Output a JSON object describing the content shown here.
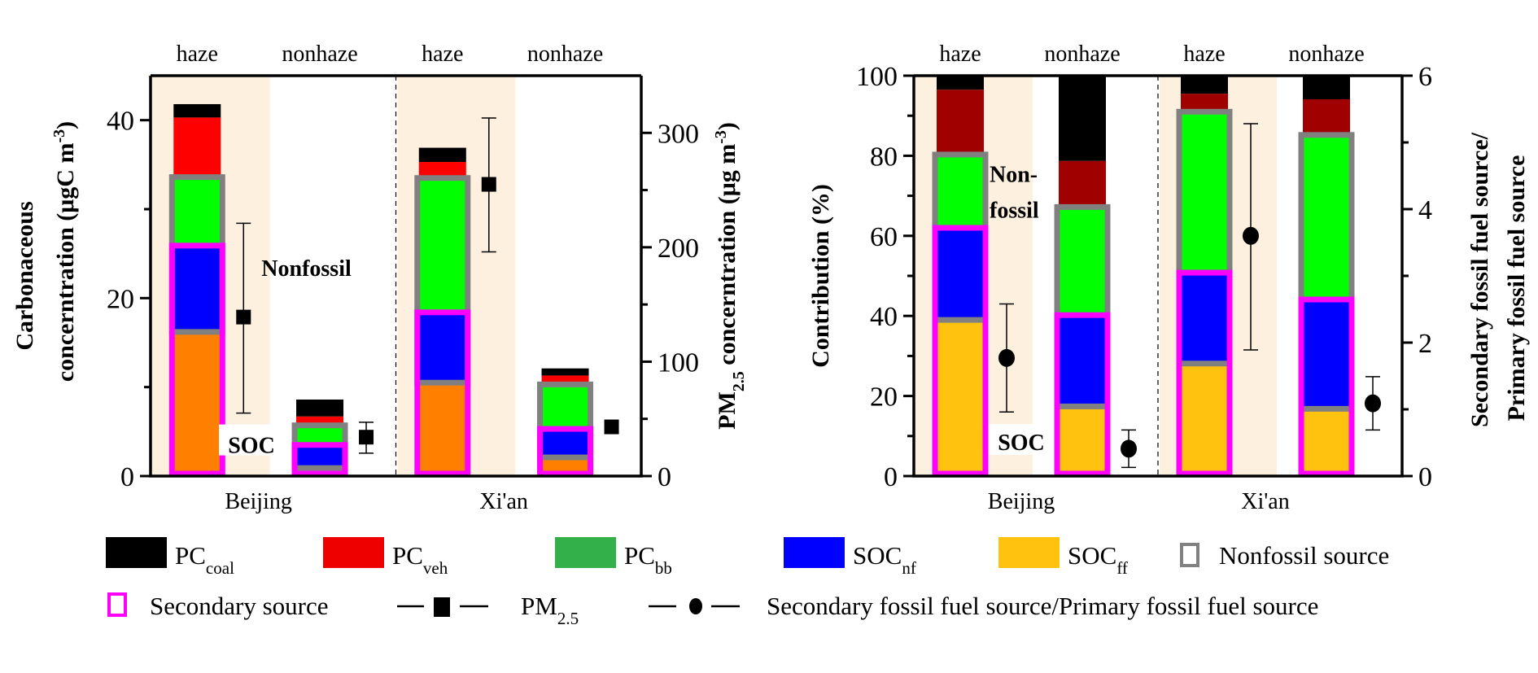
{
  "chart_data": [
    {
      "type": "bar",
      "stacked": true,
      "panel": "left",
      "ylabel_line1": "Carbonaceous",
      "ylabel_line2": "concerntration (μgC m",
      "ylabel_sup": "-3",
      "ylabel_end": ")",
      "y2label_pre": "PM",
      "y2label_sub": "2.5",
      "y2label_post": " concerntration (μg m",
      "y2label_sup": "-3",
      "y2label_end": ")",
      "ylim": [
        0,
        45
      ],
      "yticks": [
        0,
        20,
        40
      ],
      "yminor": [
        10,
        30
      ],
      "y2lim": [
        0,
        350
      ],
      "y2ticks": [
        0,
        100,
        200,
        300
      ],
      "y2minor": [
        50,
        150,
        250
      ],
      "groups": [
        "Beijing",
        "Xi'an"
      ],
      "categories": [
        "haze",
        "nonhaze",
        "haze",
        "nonhaze"
      ],
      "haze_shading": [
        true,
        false,
        true,
        false
      ],
      "series": [
        {
          "name": "SOC_ff",
          "values": [
            16.2,
            0.9,
            10.5,
            2.1
          ]
        },
        {
          "name": "SOC_nf",
          "values": [
            9.7,
            2.6,
            7.9,
            3.2
          ]
        },
        {
          "name": "PC_bb",
          "values": [
            7.7,
            2.2,
            15.1,
            5.0
          ]
        },
        {
          "name": "PC_veh",
          "values": [
            6.7,
            1.0,
            1.8,
            1.0
          ]
        },
        {
          "name": "PC_coal",
          "values": [
            1.5,
            1.9,
            1.6,
            0.8
          ]
        }
      ],
      "marker_series": {
        "name": "PM2.5",
        "marker": "square",
        "values": [
          139,
          34,
          255,
          43
        ],
        "err_low": [
          55,
          20,
          196,
          43
        ],
        "err_high": [
          221,
          47,
          313,
          43
        ]
      },
      "annotations": [
        {
          "text": "Nonfossil",
          "color": "#808080"
        },
        {
          "text": "SOC",
          "color": "#ff00ff"
        }
      ]
    },
    {
      "type": "bar",
      "stacked": true,
      "panel": "right",
      "ylabel": "Contribution (%)",
      "y2label_line1": "Secondary fossil fuel source/",
      "y2label_line2": "Primary fossil fuel source",
      "ylim": [
        0,
        100
      ],
      "yticks": [
        0,
        20,
        40,
        60,
        80,
        100
      ],
      "yminor": [
        10,
        30,
        50,
        70,
        90
      ],
      "y2lim": [
        0,
        6
      ],
      "y2ticks": [
        0,
        2,
        4,
        6
      ],
      "y2minor": [
        1,
        3,
        5
      ],
      "groups": [
        "Beijing",
        "Xi'an"
      ],
      "categories": [
        "haze",
        "nonhaze",
        "haze",
        "nonhaze"
      ],
      "haze_shading": [
        true,
        false,
        true,
        false
      ],
      "series": [
        {
          "name": "SOC_ff",
          "values": [
            39.0,
            17.4,
            28.1,
            16.8
          ]
        },
        {
          "name": "SOC_nf",
          "values": [
            23.0,
            22.8,
            22.7,
            27.3
          ]
        },
        {
          "name": "PC_bb",
          "values": [
            18.3,
            27.0,
            40.2,
            41.1
          ]
        },
        {
          "name": "PC_veh",
          "values": [
            16.2,
            11.5,
            4.5,
            8.9
          ]
        },
        {
          "name": "PC_coal",
          "values": [
            3.5,
            21.3,
            4.5,
            5.9
          ]
        }
      ],
      "marker_series": {
        "name": "Secondary fossil fuel source/Primary fossil fuel source",
        "marker": "circle",
        "values": [
          1.77,
          0.41,
          3.6,
          1.09
        ],
        "err_low": [
          0.96,
          0.13,
          1.89,
          0.69
        ],
        "err_high": [
          2.58,
          0.69,
          5.28,
          1.49
        ]
      },
      "annotations": [
        {
          "text": "Non-",
          "color": "#808080"
        },
        {
          "text": "fossil",
          "color": "#808080"
        },
        {
          "text": "SOC",
          "color": "#ff00ff"
        }
      ]
    }
  ],
  "colors": {
    "PC_coal": "#000000",
    "PC_veh_left": "#ff0000",
    "PC_veh_right": "#a00000",
    "PC_bb": "#00ff00",
    "SOC_nf": "#0000ff",
    "SOC_ff_left": "#ff8000",
    "SOC_ff_right": "#ffc20e",
    "nonfossil_outline": "#808080",
    "secondary_outline": "#ff00ff",
    "haze_bg": "#fdf0df",
    "legend_PC_veh": "#ee0000",
    "legend_PC_bb": "#33b04a"
  },
  "legend": {
    "row1": [
      {
        "key": "PC_coal",
        "base": "PC",
        "sub": "coal"
      },
      {
        "key": "PC_veh",
        "base": "PC",
        "sub": "veh"
      },
      {
        "key": "PC_bb",
        "base": "PC",
        "sub": "bb"
      },
      {
        "key": "SOC_nf",
        "base": "SOC",
        "sub": "nf"
      },
      {
        "key": "SOC_ff",
        "base": "SOC",
        "sub": "ff"
      },
      {
        "key": "nonfossil",
        "label": "Nonfossil source"
      }
    ],
    "row2": [
      {
        "key": "secondary",
        "label": "Secondary source"
      },
      {
        "key": "pm25",
        "base": "PM",
        "sub": "2.5"
      },
      {
        "key": "ratio",
        "label": "Secondary fossil fuel source/Primary fossil fuel source"
      }
    ]
  }
}
